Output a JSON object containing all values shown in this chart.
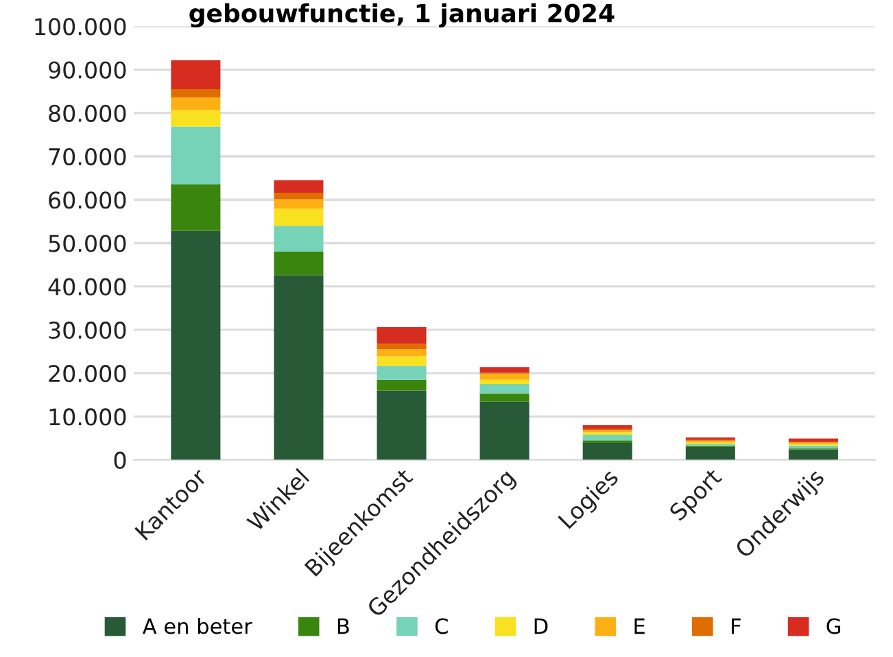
{
  "chart_data": {
    "type": "bar",
    "stacked": true,
    "title": "gebouwfunctie, 1 januari 2024",
    "categories": [
      "Kantoor",
      "Winkel",
      "Bijeenkomst",
      "Gezondheidszorg",
      "Logies",
      "Sport",
      "Onderwijs"
    ],
    "series": [
      {
        "name": "A en beter",
        "color": "#285a37",
        "values": [
          52800,
          42600,
          16000,
          13400,
          3900,
          3000,
          2400
        ]
      },
      {
        "name": "B",
        "color": "#3a850e",
        "values": [
          10800,
          5400,
          2500,
          1900,
          600,
          300,
          300
        ]
      },
      {
        "name": "C",
        "color": "#76d3b7",
        "values": [
          13300,
          6000,
          3200,
          2200,
          1300,
          400,
          600
        ]
      },
      {
        "name": "D",
        "color": "#f8e11e",
        "values": [
          3800,
          3900,
          2200,
          1000,
          600,
          400,
          400
        ]
      },
      {
        "name": "E",
        "color": "#fdb014",
        "values": [
          2900,
          2200,
          1600,
          1400,
          400,
          300,
          300
        ]
      },
      {
        "name": "F",
        "color": "#e06d00",
        "values": [
          1900,
          1500,
          1300,
          200,
          300,
          200,
          200
        ]
      },
      {
        "name": "G",
        "color": "#d62d20",
        "values": [
          6700,
          2900,
          3800,
          1300,
          900,
          600,
          700
        ]
      }
    ],
    "ylim": [
      0,
      100000
    ],
    "yticks": [
      {
        "value": 0,
        "label": "0"
      },
      {
        "value": 10000,
        "label": "10.000"
      },
      {
        "value": 20000,
        "label": "20.000"
      },
      {
        "value": 30000,
        "label": "30.000"
      },
      {
        "value": 40000,
        "label": "40.000"
      },
      {
        "value": 50000,
        "label": "50.000"
      },
      {
        "value": 60000,
        "label": "60.000"
      },
      {
        "value": 70000,
        "label": "70.000"
      },
      {
        "value": 80000,
        "label": "80.000"
      },
      {
        "value": 90000,
        "label": "90.000"
      },
      {
        "value": 100000,
        "label": "100.000"
      }
    ],
    "grid": "y",
    "legend": "bottom"
  }
}
